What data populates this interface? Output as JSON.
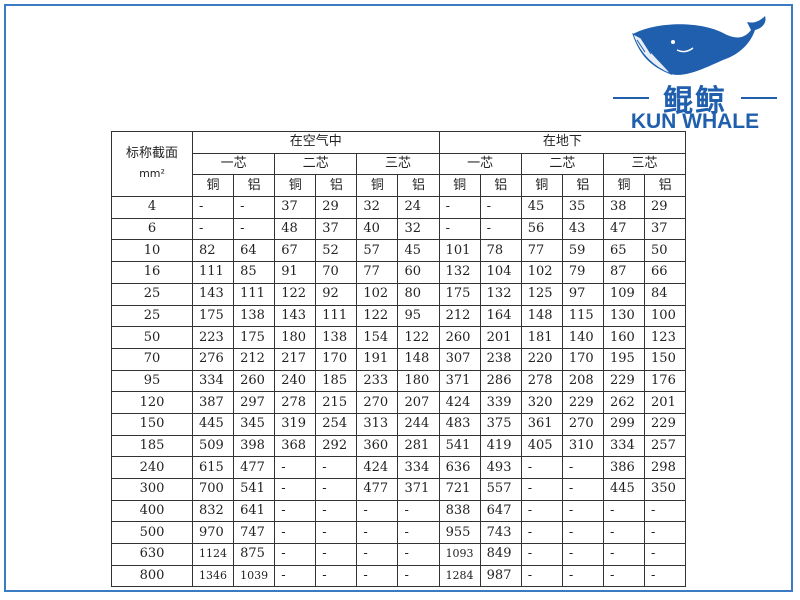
{
  "logo": {
    "chinese": "鲲鲸",
    "english": "KUN WHALE",
    "brand_color": "#1f5fae"
  },
  "table": {
    "header_section": "标称截面",
    "header_unit": "mm²",
    "groups": [
      "在空气中",
      "在地下"
    ],
    "cores": [
      "一芯",
      "二芯",
      "三芯",
      "一芯",
      "二芯",
      "三芯"
    ],
    "materials": [
      "铜",
      "铝",
      "铜",
      "铝",
      "铜",
      "铝",
      "铜",
      "铝",
      "铜",
      "铝",
      "铜",
      "铝"
    ],
    "rows": [
      [
        "4",
        "-",
        "-",
        "37",
        "29",
        "32",
        "24",
        "-",
        "-",
        "45",
        "35",
        "38",
        "29"
      ],
      [
        "6",
        "-",
        "-",
        "48",
        "37",
        "40",
        "32",
        "-",
        "-",
        "56",
        "43",
        "47",
        "37"
      ],
      [
        "10",
        "82",
        "64",
        "67",
        "52",
        "57",
        "45",
        "101",
        "78",
        "77",
        "59",
        "65",
        "50"
      ],
      [
        "16",
        "111",
        "85",
        "91",
        "70",
        "77",
        "60",
        "132",
        "104",
        "102",
        "79",
        "87",
        "66"
      ],
      [
        "25",
        "143",
        "111",
        "122",
        "92",
        "102",
        "80",
        "175",
        "132",
        "125",
        "97",
        "109",
        "84"
      ],
      [
        "25",
        "175",
        "138",
        "143",
        "111",
        "122",
        "95",
        "212",
        "164",
        "148",
        "115",
        "130",
        "100"
      ],
      [
        "50",
        "223",
        "175",
        "180",
        "138",
        "154",
        "122",
        "260",
        "201",
        "181",
        "140",
        "160",
        "123"
      ],
      [
        "70",
        "276",
        "212",
        "217",
        "170",
        "191",
        "148",
        "307",
        "238",
        "220",
        "170",
        "195",
        "150"
      ],
      [
        "95",
        "334",
        "260",
        "240",
        "185",
        "233",
        "180",
        "371",
        "286",
        "278",
        "208",
        "229",
        "176"
      ],
      [
        "120",
        "387",
        "297",
        "278",
        "215",
        "270",
        "207",
        "424",
        "339",
        "320",
        "229",
        "262",
        "201"
      ],
      [
        "150",
        "445",
        "345",
        "319",
        "254",
        "313",
        "244",
        "483",
        "375",
        "361",
        "270",
        "299",
        "229"
      ],
      [
        "185",
        "509",
        "398",
        "368",
        "292",
        "360",
        "281",
        "541",
        "419",
        "405",
        "310",
        "334",
        "257"
      ],
      [
        "240",
        "615",
        "477",
        "-",
        "-",
        "424",
        "334",
        "636",
        "493",
        "-",
        "-",
        "386",
        "298"
      ],
      [
        "300",
        "700",
        "541",
        "-",
        "-",
        "477",
        "371",
        "721",
        "557",
        "-",
        "-",
        "445",
        "350"
      ],
      [
        "400",
        "832",
        "641",
        "-",
        "-",
        "-",
        "-",
        "838",
        "647",
        "-",
        "-",
        "-",
        "-"
      ],
      [
        "500",
        "970",
        "747",
        "-",
        "-",
        "-",
        "-",
        "955",
        "743",
        "-",
        "-",
        "-",
        "-"
      ],
      [
        "630",
        "1124",
        "875",
        "-",
        "-",
        "-",
        "-",
        "1093",
        "849",
        "-",
        "-",
        "-",
        "-"
      ],
      [
        "800",
        "1346",
        "1039",
        "-",
        "-",
        "-",
        "-",
        "1284",
        "987",
        "-",
        "-",
        "-",
        "-"
      ]
    ]
  }
}
